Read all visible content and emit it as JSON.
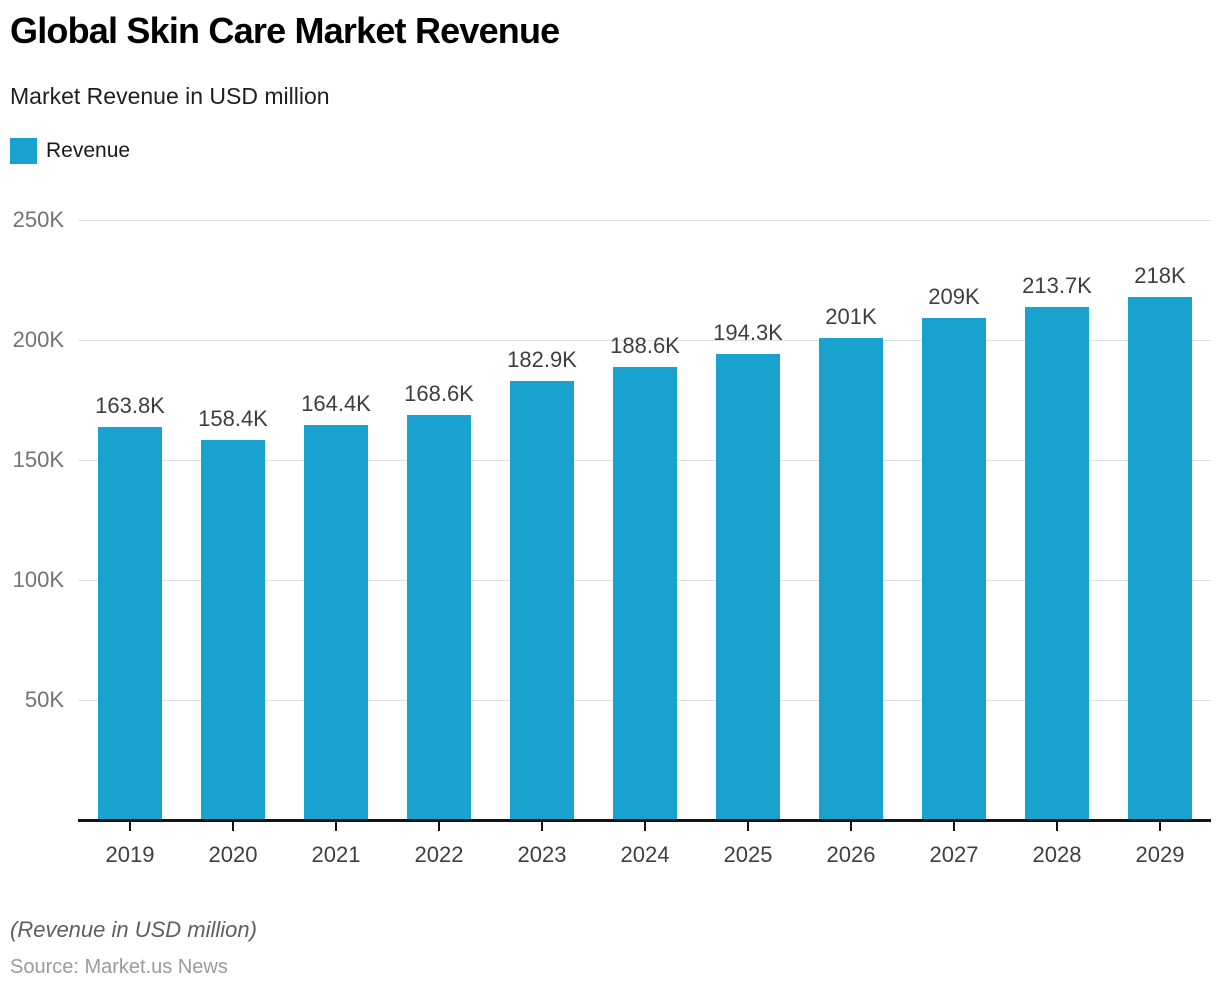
{
  "header": {
    "title": "Global Skin Care Market Revenue",
    "subtitle": "Market Revenue in USD million"
  },
  "legend": {
    "label": "Revenue"
  },
  "footer": {
    "note": "(Revenue in USD million)",
    "source": "Source: Market.us News"
  },
  "colors": {
    "series": "#1aa2ce",
    "gridline": "#e0e0e0",
    "axis": "#141414"
  },
  "chart_data": {
    "type": "bar",
    "title": "Global Skin Care Market Revenue",
    "subtitle": "Market Revenue in USD million",
    "xlabel": "",
    "ylabel": "Market Revenue in USD million",
    "legend_entries": [
      "Revenue"
    ],
    "legend_position": "top-left",
    "grid": true,
    "categories": [
      "2019",
      "2020",
      "2021",
      "2022",
      "2023",
      "2024",
      "2025",
      "2026",
      "2027",
      "2028",
      "2029"
    ],
    "series": [
      {
        "name": "Revenue",
        "values": [
          163800,
          158400,
          164400,
          168600,
          182900,
          188600,
          194300,
          201000,
          209000,
          213700,
          218000
        ],
        "value_labels": [
          "163.8K",
          "158.4K",
          "164.4K",
          "168.6K",
          "182.9K",
          "188.6K",
          "194.3K",
          "201K",
          "209K",
          "213.7K",
          "218K"
        ],
        "color": "#1aa2ce"
      }
    ],
    "ylim": [
      0,
      250000
    ],
    "yticks": [
      {
        "value": 50000,
        "label": "50K"
      },
      {
        "value": 100000,
        "label": "100K"
      },
      {
        "value": 150000,
        "label": "150K"
      },
      {
        "value": 200000,
        "label": "200K"
      },
      {
        "value": 250000,
        "label": "250K"
      }
    ]
  }
}
